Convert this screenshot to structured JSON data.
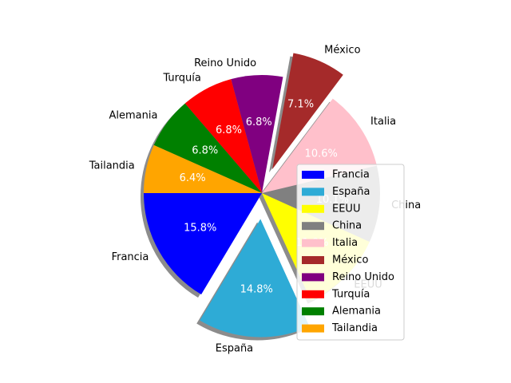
{
  "chart_data": {
    "type": "pie",
    "categories": [
      "Francia",
      "España",
      "EEUU",
      "China",
      "Italia",
      "México",
      "Reino Unido",
      "Turquía",
      "Alemania",
      "Tailandia"
    ],
    "values": [
      15.8,
      14.8,
      11.0,
      10.1,
      10.6,
      7.1,
      6.8,
      6.8,
      6.8,
      6.4
    ],
    "percent_labels": [
      "15.8%",
      "14.8%",
      "11.0%",
      "10.1%",
      "10.6%",
      "7.1%",
      "6.8%",
      "6.8%",
      "6.8%",
      "6.4%"
    ],
    "colors": [
      "#0000ff",
      "#2eabd6",
      "#ffff00",
      "#808080",
      "#ffc0cb",
      "#a52a2a",
      "#800080",
      "#ff0000",
      "#008000",
      "#ffa500"
    ],
    "exploded": [
      "España",
      "México"
    ],
    "shadow": true,
    "start_angle_deg": 180,
    "direction": "counterclockwise",
    "legend": {
      "placement": "lower-right",
      "entries": [
        "Francia",
        "España",
        "EEUU",
        "China",
        "Italia",
        "México",
        "Reino Unido",
        "Turquía",
        "Alemania",
        "Tailandia"
      ]
    }
  }
}
